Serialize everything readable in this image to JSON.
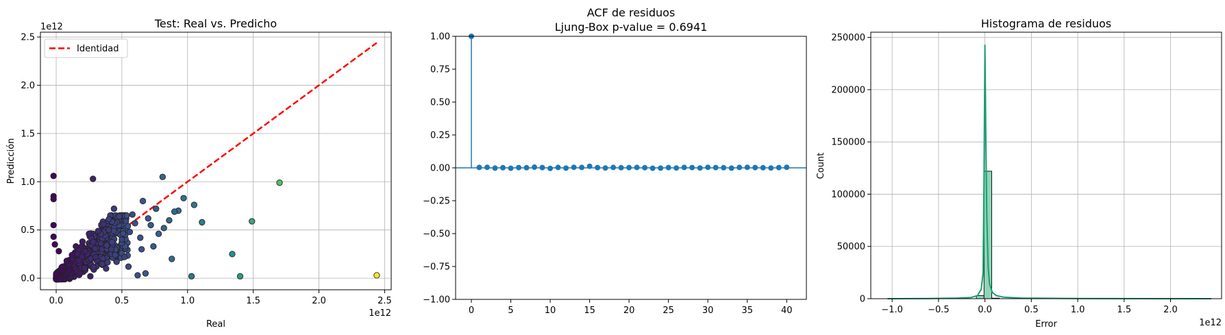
{
  "chart_data": [
    {
      "type": "scatter",
      "title": "Test: Real vs. Predicho",
      "xlabel": "Real",
      "ylabel": "Predicción",
      "x_offset_label": "1e12",
      "y_offset_label": "1e12",
      "xlim": [
        -0.12,
        2.55
      ],
      "ylim": [
        -0.12,
        2.55
      ],
      "xticks": [
        0.0,
        0.5,
        1.0,
        1.5,
        2.0,
        2.5
      ],
      "xtick_labels": [
        "0.0",
        "0.5",
        "1.0",
        "1.5",
        "2.0",
        "2.5"
      ],
      "yticks": [
        0.0,
        0.5,
        1.0,
        1.5,
        2.0,
        2.5
      ],
      "ytick_labels": [
        "0.0",
        "0.5",
        "1.0",
        "1.5",
        "2.0",
        "2.5"
      ],
      "grid": true,
      "legend": {
        "position": "top-left",
        "entries": [
          {
            "label": "Identidad",
            "color": "#ff0000",
            "style": "dashed"
          }
        ]
      },
      "identity_line": {
        "x": [
          0,
          2.44
        ],
        "y": [
          0,
          2.44
        ],
        "color": "#ff0000"
      },
      "colormap": "viridis",
      "points": [
        {
          "x": -0.02,
          "y": 1.06,
          "c": 0.02
        },
        {
          "x": -0.02,
          "y": 0.85,
          "c": 0.02
        },
        {
          "x": -0.02,
          "y": 0.82,
          "c": 0.02
        },
        {
          "x": -0.02,
          "y": 0.55,
          "c": 0.02
        },
        {
          "x": -0.02,
          "y": 0.43,
          "c": 0.02
        },
        {
          "x": -0.01,
          "y": 0.35,
          "c": 0.02
        },
        {
          "x": 0.28,
          "y": 1.03,
          "c": 0.1
        },
        {
          "x": 0.81,
          "y": 1.05,
          "c": 0.33
        },
        {
          "x": 0.97,
          "y": 0.83,
          "c": 0.38
        },
        {
          "x": 1.7,
          "y": 0.99,
          "c": 0.7
        },
        {
          "x": 1.49,
          "y": 0.59,
          "c": 0.6
        },
        {
          "x": 1.05,
          "y": 0.76,
          "c": 0.4
        },
        {
          "x": 1.11,
          "y": 0.58,
          "c": 0.43
        },
        {
          "x": 1.34,
          "y": 0.25,
          "c": 0.5
        },
        {
          "x": 1.4,
          "y": 0.02,
          "c": 0.55
        },
        {
          "x": 1.03,
          "y": 0.02,
          "c": 0.4
        },
        {
          "x": 2.44,
          "y": 0.03,
          "c": 1.0
        },
        {
          "x": 0.88,
          "y": 0.2,
          "c": 0.35
        },
        {
          "x": 0.93,
          "y": 0.7,
          "c": 0.36
        },
        {
          "x": 0.9,
          "y": 0.69,
          "c": 0.35
        },
        {
          "x": 0.82,
          "y": 0.52,
          "c": 0.32
        },
        {
          "x": 0.78,
          "y": 0.46,
          "c": 0.3
        },
        {
          "x": 0.74,
          "y": 0.33,
          "c": 0.28
        },
        {
          "x": 0.66,
          "y": 0.8,
          "c": 0.26
        },
        {
          "x": 0.68,
          "y": 0.05,
          "c": 0.27
        },
        {
          "x": 0.62,
          "y": 0.03,
          "c": 0.24
        },
        {
          "x": 0.55,
          "y": 0.12,
          "c": 0.22
        },
        {
          "x": 0.7,
          "y": 0.62,
          "c": 0.27
        },
        {
          "x": 0.6,
          "y": 0.57,
          "c": 0.24
        },
        {
          "x": 0.48,
          "y": 0.64,
          "c": 0.2
        },
        {
          "x": 0.44,
          "y": 0.72,
          "c": 0.18
        },
        {
          "x": 0.36,
          "y": 0.56,
          "c": 0.15
        },
        {
          "x": 0.32,
          "y": 0.49,
          "c": 0.13
        },
        {
          "x": 0.25,
          "y": 0.46,
          "c": 0.1
        },
        {
          "x": 0.2,
          "y": 0.38,
          "c": 0.08
        },
        {
          "x": 0.15,
          "y": 0.33,
          "c": 0.06
        },
        {
          "x": 0.42,
          "y": 0.3,
          "c": 0.17
        },
        {
          "x": 0.5,
          "y": 0.4,
          "c": 0.2
        },
        {
          "x": 0.56,
          "y": 0.48,
          "c": 0.22
        },
        {
          "x": 0.64,
          "y": 0.42,
          "c": 0.25
        },
        {
          "x": 0.72,
          "y": 0.55,
          "c": 0.28
        },
        {
          "x": 0.52,
          "y": 0.22,
          "c": 0.21
        },
        {
          "x": 0.46,
          "y": 0.17,
          "c": 0.19
        },
        {
          "x": 0.38,
          "y": 0.1,
          "c": 0.16
        },
        {
          "x": 0.3,
          "y": 0.22,
          "c": 0.12
        },
        {
          "x": 0.12,
          "y": 0.24,
          "c": 0.05
        },
        {
          "x": 0.08,
          "y": 0.18,
          "c": 0.04
        },
        {
          "x": 0.05,
          "y": 0.12,
          "c": 0.03
        },
        {
          "x": 0.02,
          "y": 0.28,
          "c": 0.02
        },
        {
          "x": 0.18,
          "y": 0.05,
          "c": 0.07
        },
        {
          "x": 0.26,
          "y": 0.02,
          "c": 0.1
        },
        {
          "x": 0.34,
          "y": 0.36,
          "c": 0.14
        },
        {
          "x": 0.58,
          "y": 0.66,
          "c": 0.23
        },
        {
          "x": 0.76,
          "y": 0.72,
          "c": 0.29
        },
        {
          "x": 0.86,
          "y": 0.6,
          "c": 0.34
        },
        {
          "x": 0.4,
          "y": 0.5,
          "c": 0.16
        },
        {
          "x": 0.22,
          "y": 0.28,
          "c": 0.09
        },
        {
          "x": 0.1,
          "y": 0.08,
          "c": 0.04
        },
        {
          "x": 0.65,
          "y": 0.3,
          "c": 0.25
        },
        {
          "x": 0.53,
          "y": 0.59,
          "c": 0.21
        }
      ]
    },
    {
      "type": "stem",
      "title": "ACF de residuos\nLjung-Box p-value = 0.6941",
      "xlabel": "",
      "ylabel": "",
      "xlim": [
        -2,
        42.5
      ],
      "ylim": [
        -1.0,
        1.0
      ],
      "xticks": [
        0,
        5,
        10,
        15,
        20,
        25,
        30,
        35,
        40
      ],
      "xtick_labels": [
        "0",
        "5",
        "10",
        "15",
        "20",
        "25",
        "30",
        "35",
        "40"
      ],
      "yticks": [
        1.0,
        0.75,
        0.5,
        0.25,
        0.0,
        -0.25,
        -0.5,
        -0.75,
        -1.0
      ],
      "ytick_labels": [
        "1.00",
        "0.75",
        "0.50",
        "0.25",
        "0.00",
        "−0.25",
        "−0.50",
        "−0.75",
        "−1.00"
      ],
      "grid": false,
      "color": "#1f77b4",
      "lags": [
        0,
        1,
        2,
        3,
        4,
        5,
        6,
        7,
        8,
        9,
        10,
        11,
        12,
        13,
        14,
        15,
        16,
        17,
        18,
        19,
        20,
        21,
        22,
        23,
        24,
        25,
        26,
        27,
        28,
        29,
        30,
        31,
        32,
        33,
        34,
        35,
        36,
        37,
        38,
        39,
        40
      ],
      "values": [
        1.0,
        0.003,
        0.004,
        -0.002,
        0.001,
        -0.003,
        0.002,
        0.001,
        0.005,
        0.002,
        -0.004,
        0.003,
        -0.002,
        0.004,
        0.003,
        0.012,
        0.002,
        -0.001,
        0.003,
        0.001,
        0.002,
        0.003,
        0.001,
        -0.003,
        -0.002,
        0.002,
        -0.001,
        0.003,
        0.002,
        -0.001,
        0.004,
        0.002,
        0.001,
        -0.002,
        0.003,
        0.004,
        0.002,
        0.001,
        -0.001,
        0.002,
        0.004
      ]
    },
    {
      "type": "histogram",
      "title": "Histograma de residuos",
      "xlabel": "Error",
      "ylabel": "Count",
      "x_offset_label": "1e12",
      "xlim": [
        -1.23,
        2.55
      ],
      "ylim": [
        0,
        255000
      ],
      "xticks": [
        -1.0,
        -0.5,
        0.0,
        0.5,
        1.0,
        1.5,
        2.0
      ],
      "xtick_labels": [
        "−1.0",
        "−0.5",
        "0.0",
        "0.5",
        "1.0",
        "1.5",
        "2.0"
      ],
      "yticks": [
        0,
        50000,
        100000,
        150000,
        200000,
        250000
      ],
      "ytick_labels": [
        "0",
        "50000",
        "100000",
        "150000",
        "200000",
        "250000"
      ],
      "grid": true,
      "bar_color": "#8fd5b8",
      "kde_color": "#1a9e6e",
      "bins": [
        {
          "x0": -0.093,
          "x1": -0.01,
          "count": 3000
        },
        {
          "x0": -0.01,
          "x1": 0.073,
          "count": 122000
        },
        {
          "x0": 0.073,
          "x1": 0.156,
          "count": 500
        }
      ],
      "kde": {
        "x": [
          -1.05,
          -0.6,
          -0.3,
          -0.15,
          -0.08,
          -0.04,
          -0.02,
          -0.01,
          0.0,
          0.005,
          0.01,
          0.02,
          0.035,
          0.05,
          0.08,
          0.12,
          0.2,
          0.4,
          1.0,
          2.44
        ],
        "y": [
          0,
          200,
          600,
          1200,
          3000,
          9000,
          25000,
          110000,
          243000,
          200000,
          150000,
          80000,
          30000,
          14000,
          6000,
          3000,
          1500,
          600,
          150,
          0
        ]
      }
    }
  ]
}
